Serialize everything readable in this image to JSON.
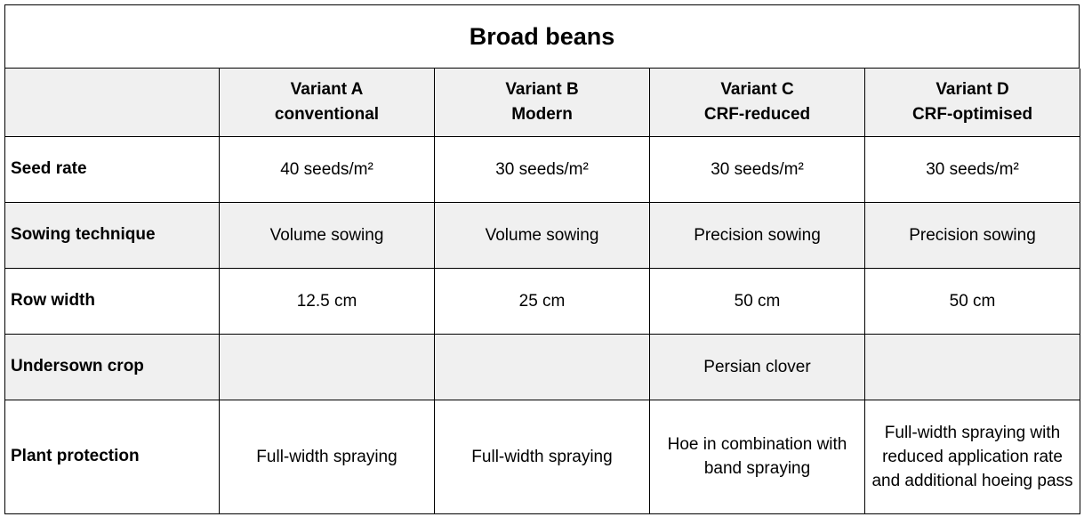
{
  "title": "Broad beans",
  "columns": [
    {
      "line1": "Variant A",
      "line2": "conventional"
    },
    {
      "line1": "Variant B",
      "line2": "Modern"
    },
    {
      "line1": "Variant C",
      "line2": "CRF-reduced"
    },
    {
      "line1": "Variant D",
      "line2": "CRF-optimised"
    }
  ],
  "rows": [
    {
      "label": "Seed rate",
      "cells": [
        "40 seeds/m²",
        "30 seeds/m²",
        "30 seeds/m²",
        "30 seeds/m²"
      ]
    },
    {
      "label": "Sowing technique",
      "cells": [
        "Volume sowing",
        "Volume sowing",
        "Precision sowing",
        "Precision sowing"
      ]
    },
    {
      "label": "Row width",
      "cells": [
        "12.5 cm",
        "25 cm",
        "50 cm",
        "50 cm"
      ]
    },
    {
      "label": "Undersown crop",
      "cells": [
        "",
        "",
        "Persian clover",
        ""
      ]
    },
    {
      "label": "Plant protection",
      "cells": [
        "Full-width spraying",
        "Full-width spraying",
        "Hoe in combination with band spraying",
        "Full-width spraying with reduced application rate and additional hoeing pass"
      ]
    }
  ],
  "colors": {
    "shade": "#f0f0f0",
    "border": "#000000"
  }
}
